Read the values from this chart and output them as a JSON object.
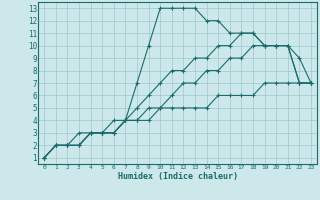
{
  "title": "",
  "xlabel": "Humidex (Indice chaleur)",
  "xlim": [
    -0.5,
    23.5
  ],
  "ylim": [
    0.5,
    13.5
  ],
  "xticks": [
    0,
    1,
    2,
    3,
    4,
    5,
    6,
    7,
    8,
    9,
    10,
    11,
    12,
    13,
    14,
    15,
    16,
    17,
    18,
    19,
    20,
    21,
    22,
    23
  ],
  "yticks": [
    1,
    2,
    3,
    4,
    5,
    6,
    7,
    8,
    9,
    10,
    11,
    12,
    13
  ],
  "background_color": "#cce8ea",
  "grid_color": "#9fc8cc",
  "line_color": "#1a6b6b",
  "line1_x": [
    0,
    1,
    2,
    3,
    4,
    5,
    6,
    7,
    8,
    9,
    10,
    11,
    12,
    13,
    14,
    15,
    16,
    17,
    18,
    19,
    20,
    21,
    22,
    23
  ],
  "line1_y": [
    1,
    2,
    2,
    2,
    3,
    3,
    3,
    4,
    7,
    10,
    13,
    13,
    13,
    13,
    12,
    12,
    11,
    11,
    11,
    10,
    10,
    10,
    7,
    7
  ],
  "line2_x": [
    0,
    1,
    2,
    3,
    4,
    5,
    6,
    7,
    8,
    9,
    10,
    11,
    12,
    13,
    14,
    15,
    16,
    17,
    18,
    19,
    20,
    21,
    22,
    23
  ],
  "line2_y": [
    1,
    2,
    2,
    2,
    3,
    3,
    3,
    4,
    5,
    6,
    7,
    8,
    8,
    9,
    9,
    10,
    10,
    11,
    11,
    10,
    10,
    10,
    7,
    7
  ],
  "line3_x": [
    0,
    1,
    2,
    3,
    4,
    5,
    6,
    7,
    8,
    9,
    10,
    11,
    12,
    13,
    14,
    15,
    16,
    17,
    18,
    19,
    20,
    21,
    22,
    23
  ],
  "line3_y": [
    1,
    2,
    2,
    2,
    3,
    3,
    3,
    4,
    4,
    5,
    5,
    6,
    7,
    7,
    8,
    8,
    9,
    9,
    10,
    10,
    10,
    10,
    9,
    7
  ],
  "line4_x": [
    0,
    1,
    2,
    3,
    4,
    5,
    6,
    7,
    8,
    9,
    10,
    11,
    12,
    13,
    14,
    15,
    16,
    17,
    18,
    19,
    20,
    21,
    22,
    23
  ],
  "line4_y": [
    1,
    2,
    2,
    3,
    3,
    3,
    4,
    4,
    4,
    4,
    5,
    5,
    5,
    5,
    5,
    6,
    6,
    6,
    6,
    7,
    7,
    7,
    7,
    7
  ]
}
